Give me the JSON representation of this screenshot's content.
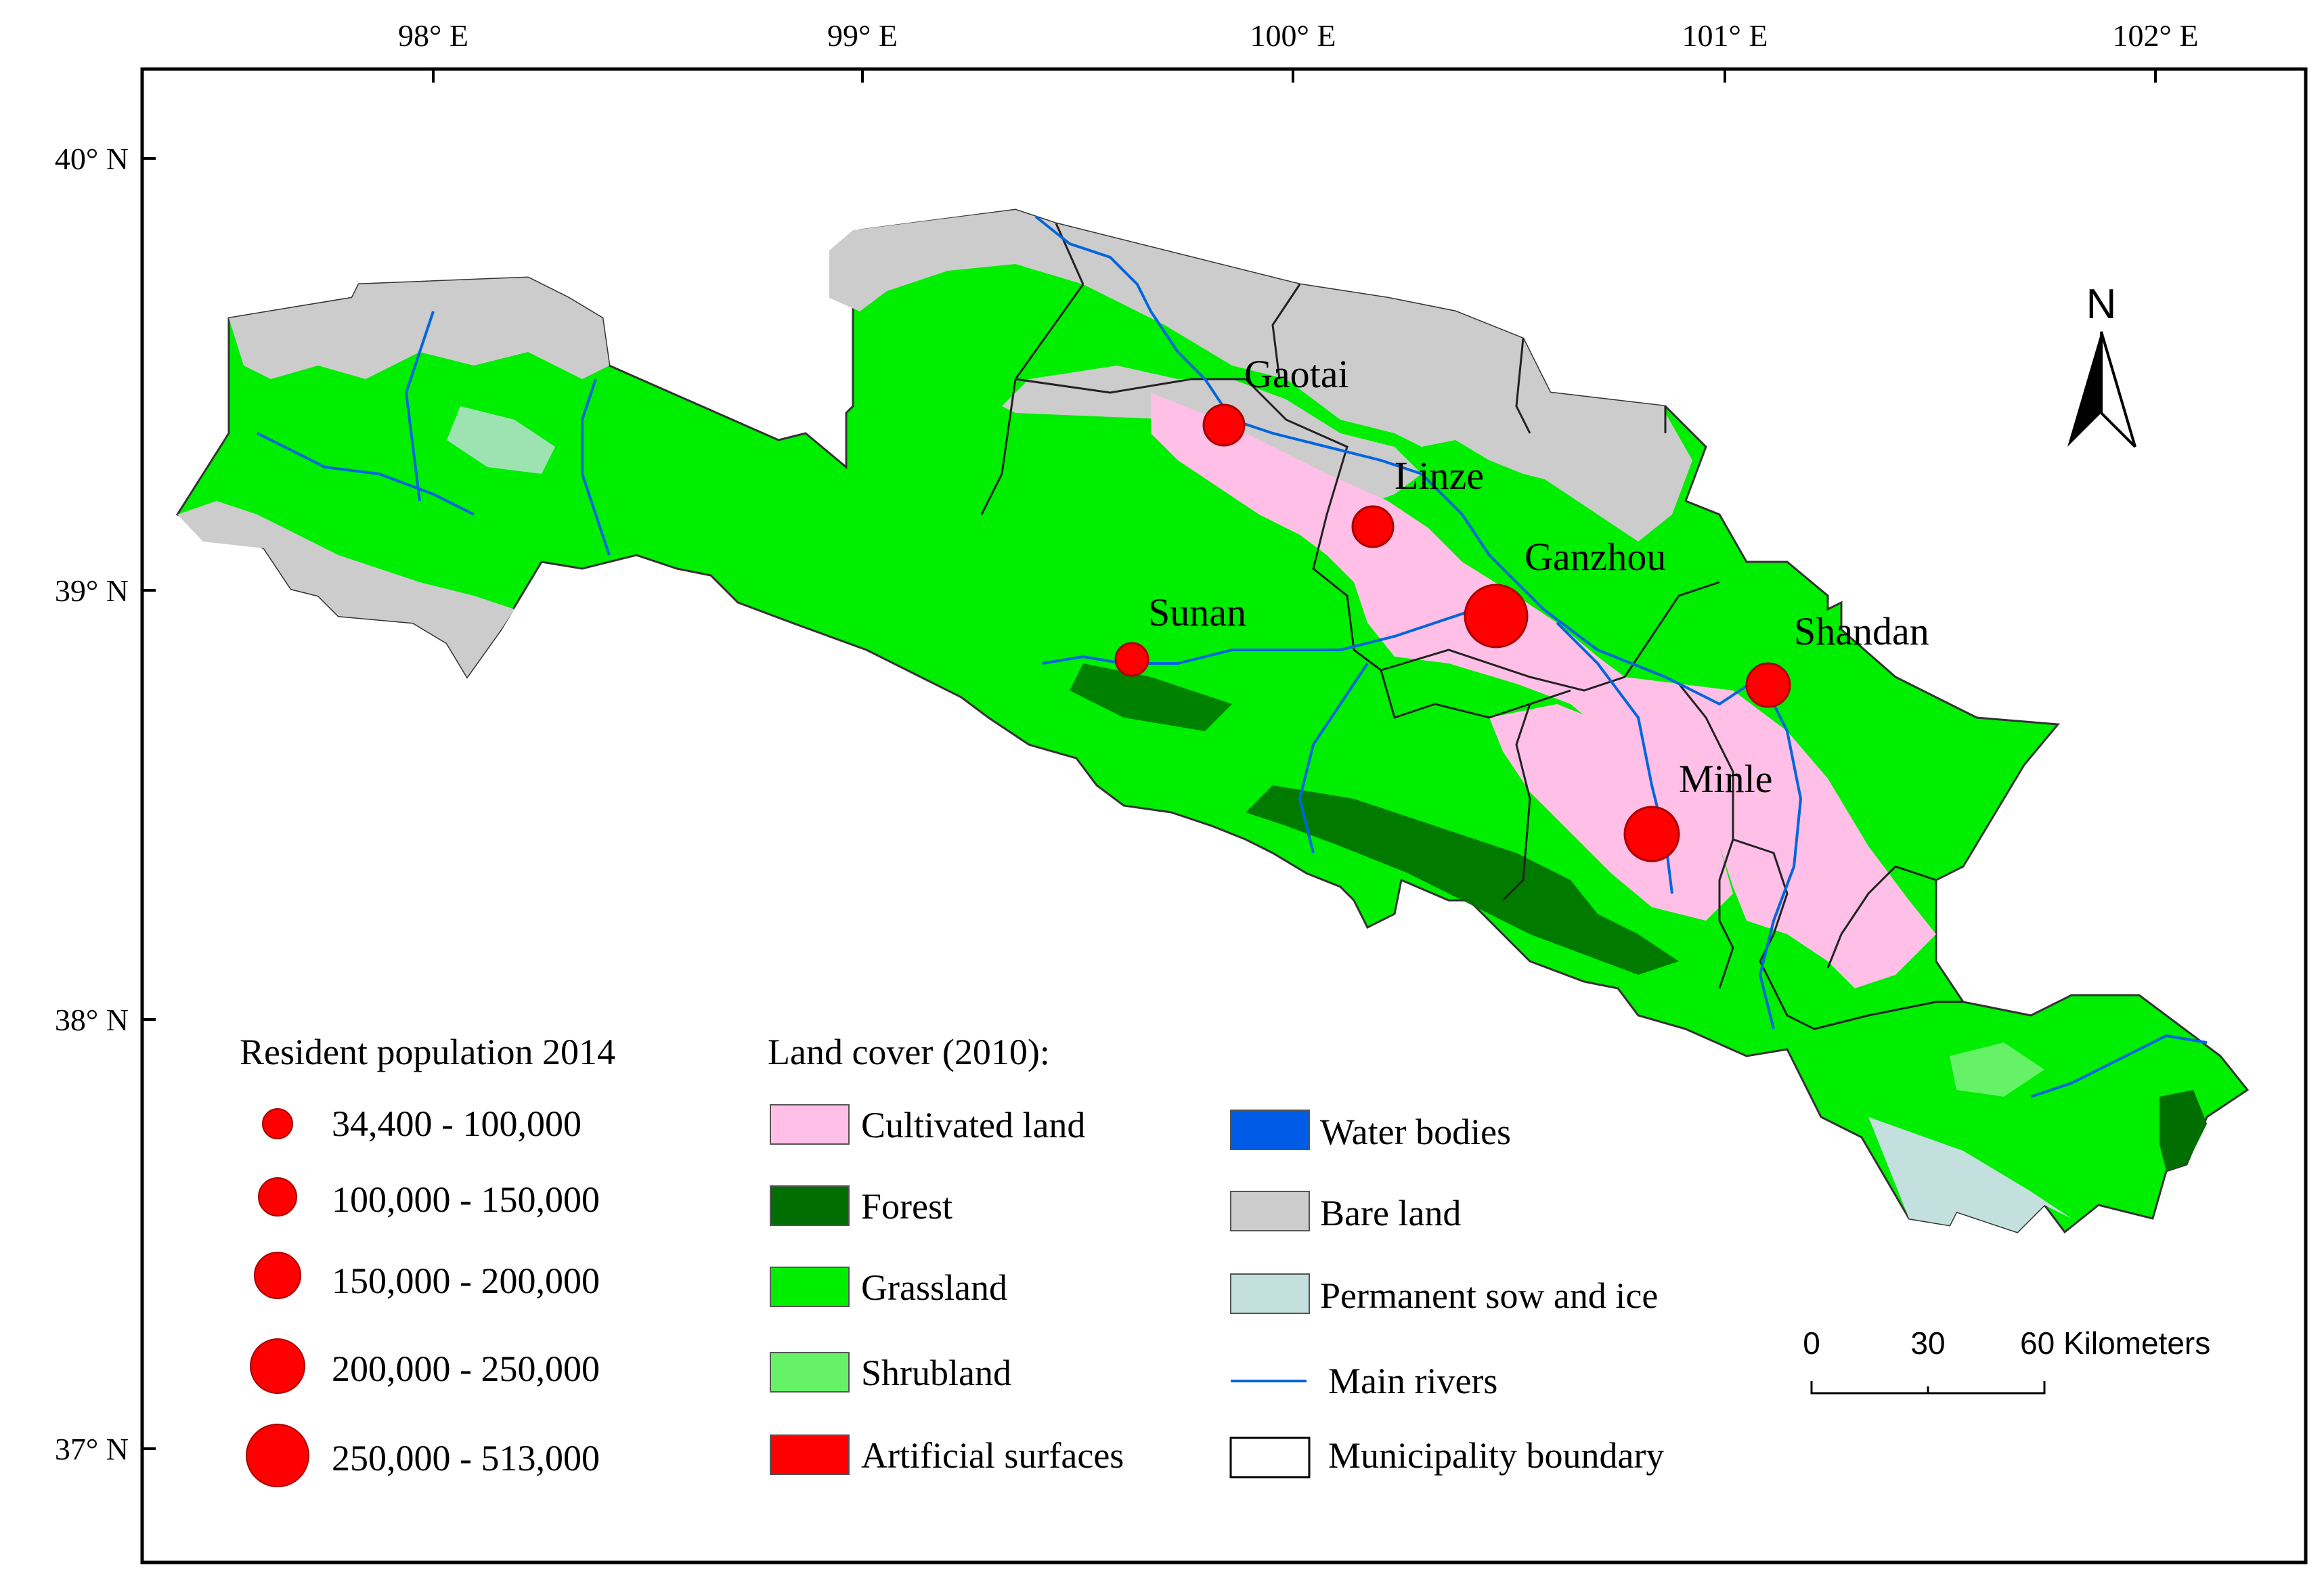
{
  "map": {
    "lon_ticks": [
      "98° E",
      "99° E",
      "100° E",
      "101° E",
      "102° E"
    ],
    "lat_ticks": [
      "40° N",
      "39° N",
      "38° N",
      "37° N"
    ],
    "towns": [
      {
        "name": "Gaotai",
        "lon": 99.82,
        "lat": 39.38,
        "population_class": 2
      },
      {
        "name": "Linze",
        "lon": 100.16,
        "lat": 39.15,
        "population_class": 2
      },
      {
        "name": "Ganzhou",
        "lon": 100.45,
        "lat": 38.93,
        "population_class": 5
      },
      {
        "name": "Sunan",
        "lon": 99.62,
        "lat": 38.84,
        "population_class": 1
      },
      {
        "name": "Shandan",
        "lon": 101.08,
        "lat": 38.78,
        "population_class": 2
      },
      {
        "name": "Minle",
        "lon": 100.82,
        "lat": 38.43,
        "population_class": 4
      }
    ],
    "north_arrow": {
      "label": "N"
    },
    "scale_bar": {
      "labels": [
        "0",
        "30",
        "60 Kilometers"
      ]
    }
  },
  "colors": {
    "cultivated": "#ffbfe7",
    "forest": "#006e00",
    "grassland": "#00ee00",
    "shrubland": "#66f266",
    "artificial": "#ff0000",
    "water": "#005ce6",
    "bare": "#cccccc",
    "snow": "#c4e0de",
    "river": "#0066dd",
    "town_marker": "#ff0000"
  },
  "legend_population": {
    "title": "Resident population 2014",
    "classes": [
      "34,400 - 100,000",
      "100,000 - 150,000",
      "150,000 - 200,000",
      "200,000 - 250,000",
      "250,000 - 513,000"
    ]
  },
  "legend_landcover": {
    "title": "Land cover (2010):",
    "items_left": [
      {
        "label": "Cultivated land",
        "color": "#ffbfe7"
      },
      {
        "label": "Forest",
        "color": "#006e00"
      },
      {
        "label": "Grassland",
        "color": "#00ee00"
      },
      {
        "label": "Shrubland",
        "color": "#66f266"
      },
      {
        "label": "Artificial surfaces",
        "color": "#ff0000"
      }
    ],
    "items_right": [
      {
        "label": "Water bodies",
        "color": "#005ce6"
      },
      {
        "label": "Bare land",
        "color": "#cccccc"
      },
      {
        "label": "Permanent sow and ice",
        "color": "#c4e0de"
      },
      {
        "label": "Main rivers",
        "color": "#0066dd"
      },
      {
        "label": "Municipality boundary",
        "color": "#ffffff"
      }
    ]
  }
}
